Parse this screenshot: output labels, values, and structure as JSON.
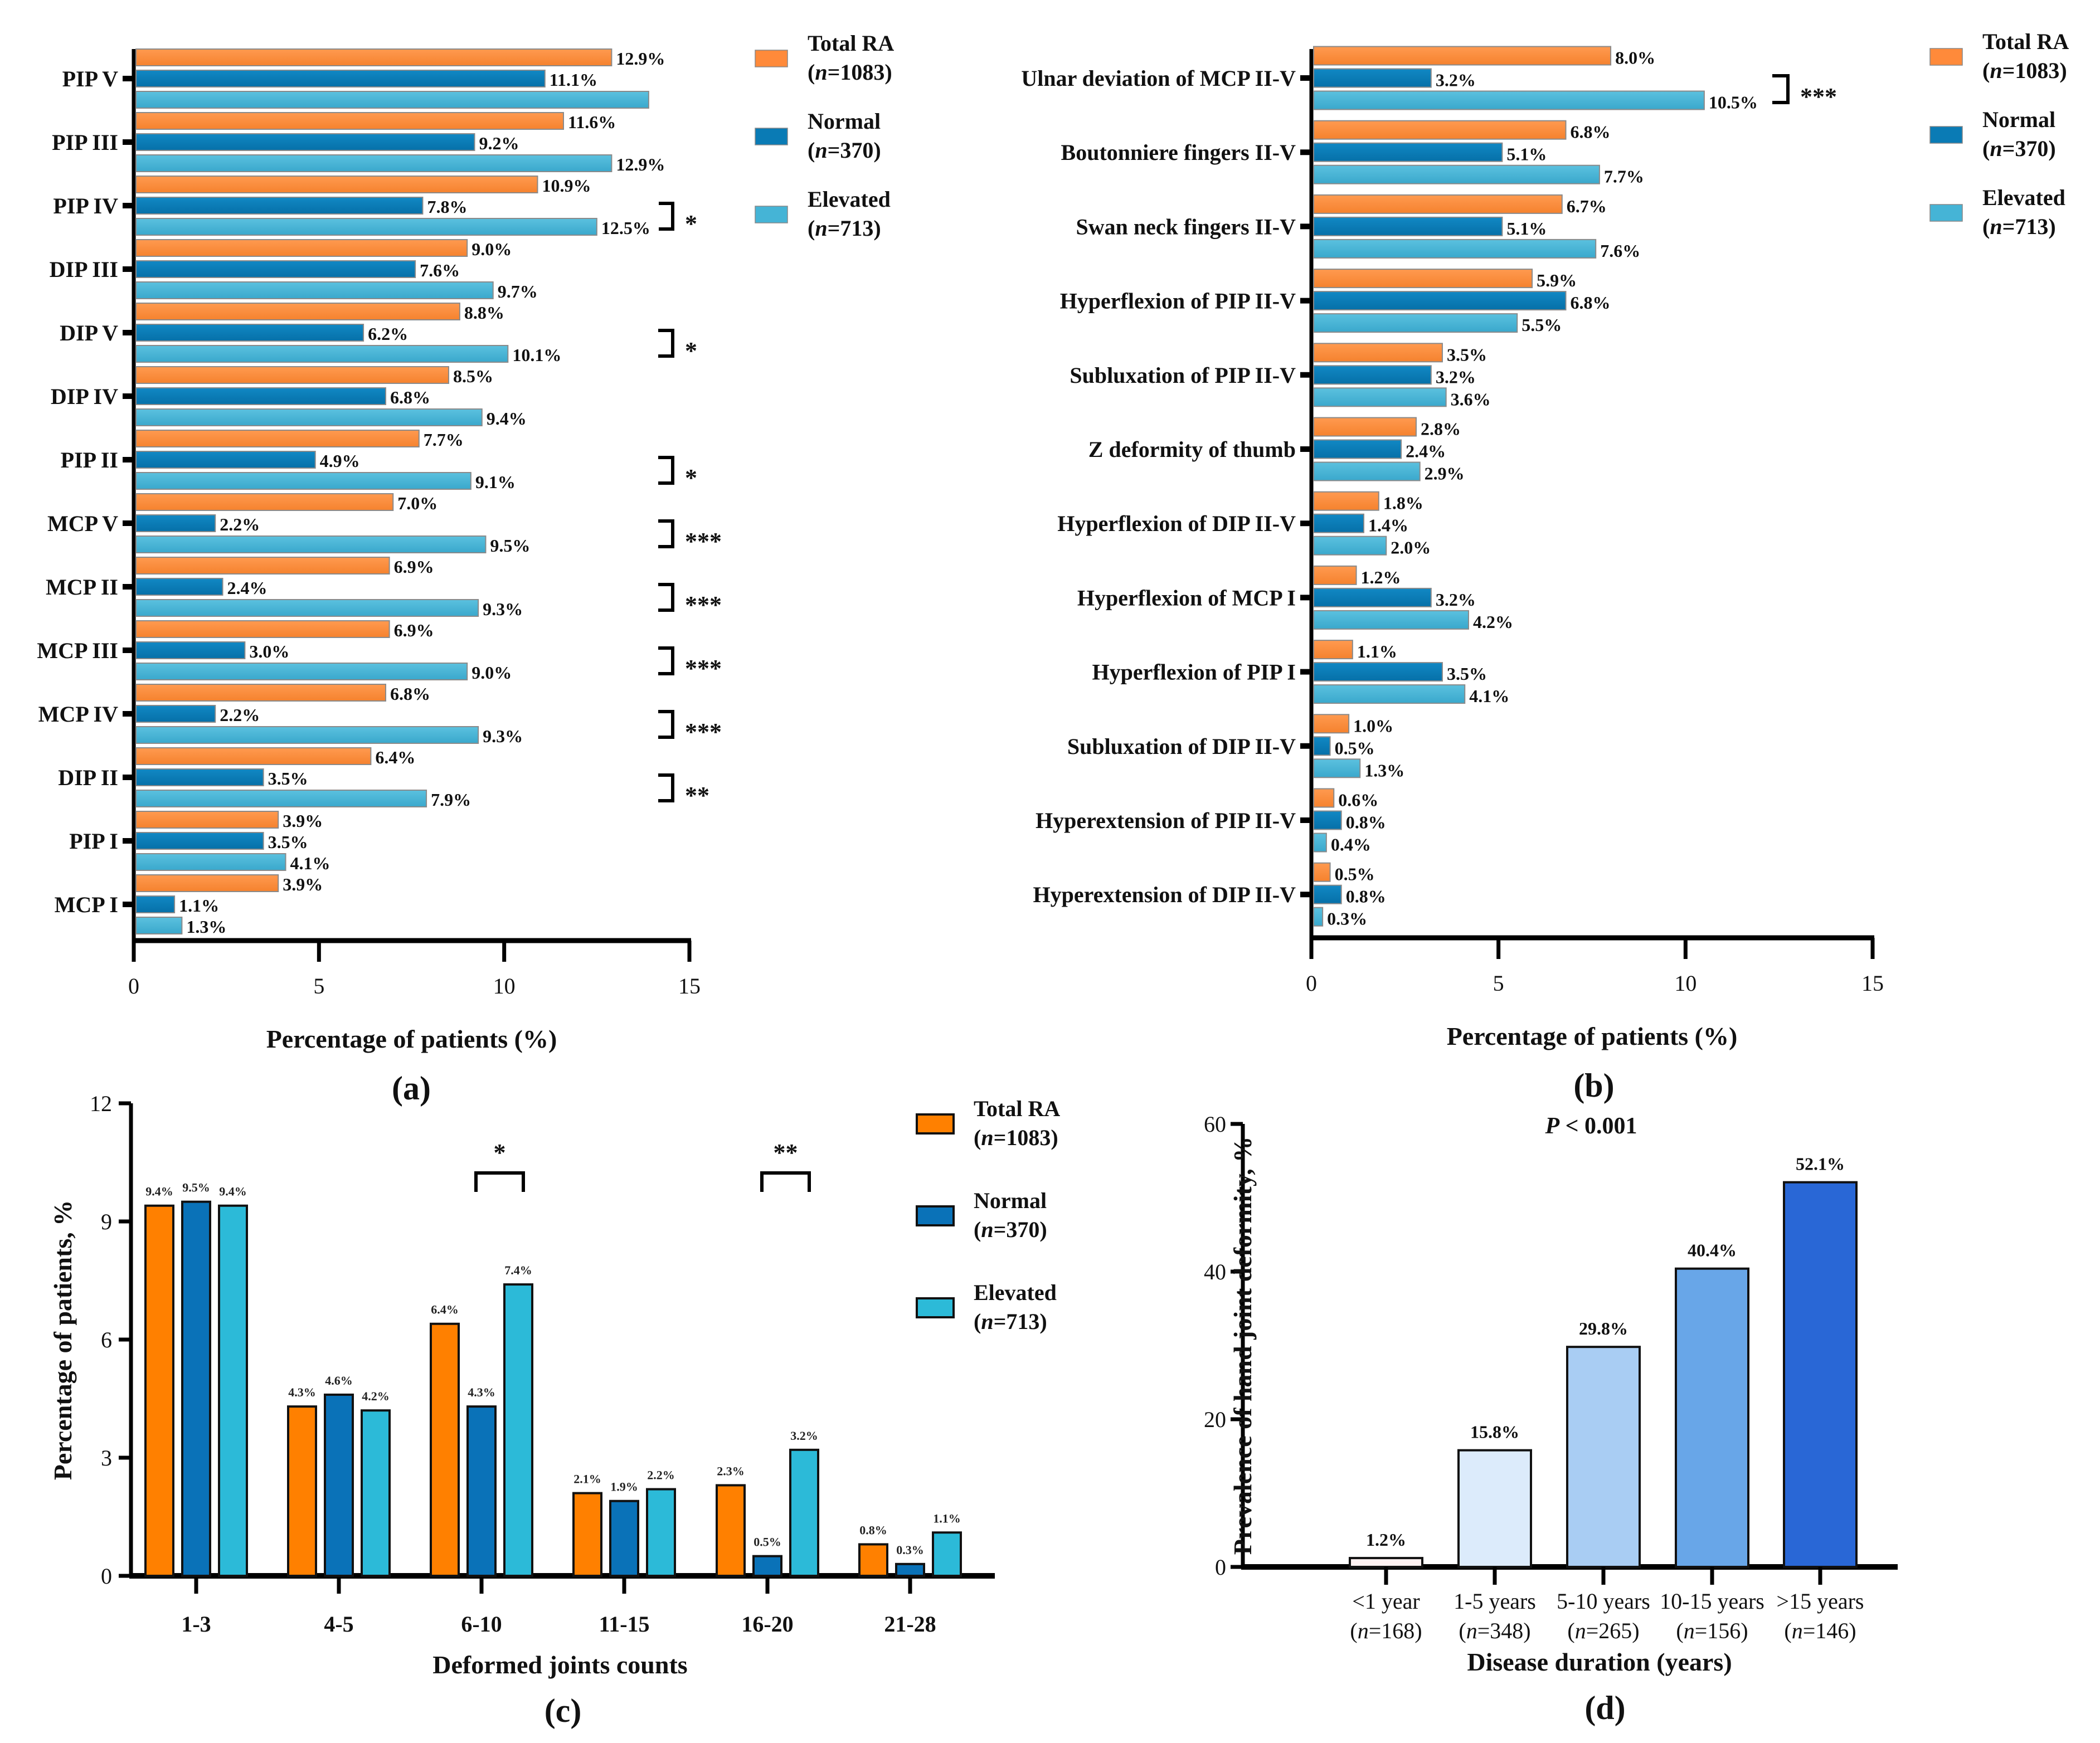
{
  "colors": {
    "total": "#FF8A3A",
    "normal": "#0A7BB5",
    "elevated": "#45B4D6",
    "total_c": "#FF8000",
    "normal_c": "#0A72B8",
    "elevated_c": "#2CBAD8",
    "d_bars": [
      "#FFF2F2",
      "#DCEBFB",
      "#A9CDF3",
      "#68A6E8",
      "#2967D6"
    ]
  },
  "legend": {
    "total": {
      "name": "Total RA",
      "n": "(n=1083)"
    },
    "normal": {
      "name": "Normal",
      "n": "(n=370)"
    },
    "elevated": {
      "name": "Elevated",
      "n": "(n=713)"
    }
  },
  "chart_data": [
    {
      "id": "a",
      "type": "bar",
      "orientation": "horizontal",
      "panel_label": "(a)",
      "xlabel": "Percentage of patients (%)",
      "ylabel": "",
      "xlim": [
        0,
        15
      ],
      "xticks": [
        "0",
        "5",
        "10",
        "15"
      ],
      "legend_position": "right",
      "categories": [
        "PIP V",
        "PIP III",
        "PIP IV",
        "DIP III",
        "DIP V",
        "DIP IV",
        "PIP II",
        "MCP V",
        "MCP II",
        "MCP III",
        "MCP IV",
        "DIP II",
        "PIP I",
        "MCP I"
      ],
      "series": [
        {
          "name": "Total RA (n=1083)",
          "key": "total",
          "values": [
            12.9,
            11.6,
            10.9,
            9.0,
            8.8,
            8.5,
            7.7,
            7.0,
            6.9,
            6.9,
            6.8,
            6.4,
            3.9,
            3.9
          ],
          "labels": [
            "12.9%",
            "11.6%",
            "10.9%",
            "9.0%",
            "8.8%",
            "8.5%",
            "7.7%",
            "7.0%",
            "6.9%",
            "6.9%",
            "6.8%",
            "6.4%",
            "3.9%",
            "3.9%"
          ]
        },
        {
          "name": "Normal (n=370)",
          "key": "normal",
          "values": [
            11.1,
            9.2,
            7.8,
            7.6,
            6.2,
            6.8,
            4.9,
            2.2,
            2.4,
            3.0,
            2.2,
            3.5,
            3.5,
            1.1
          ],
          "labels": [
            "11.1%",
            "9.2%",
            "7.8%",
            "7.6%",
            "6.2%",
            "6.8%",
            "4.9%",
            "2.2%",
            "2.4%",
            "3.0%",
            "2.2%",
            "3.5%",
            "3.5%",
            "1.1%"
          ]
        },
        {
          "name": "Elevated (n=713)",
          "key": "elevated",
          "values": [
            13.9,
            12.9,
            12.5,
            9.7,
            10.1,
            9.4,
            9.1,
            9.5,
            9.3,
            9.0,
            9.3,
            7.9,
            4.1,
            1.3
          ],
          "labels": [
            "",
            "12.9%",
            "12.5%",
            "9.7%",
            "10.1%",
            "9.4%",
            "9.1%",
            "9.5%",
            "9.3%",
            "9.0%",
            "9.3%",
            "7.9%",
            "4.1%",
            "1.3%"
          ]
        }
      ],
      "significance": [
        {
          "category": "PIP IV",
          "mark": "*"
        },
        {
          "category": "DIP V",
          "mark": "*"
        },
        {
          "category": "PIP II",
          "mark": "*"
        },
        {
          "category": "MCP V",
          "mark": "***"
        },
        {
          "category": "MCP II",
          "mark": "***"
        },
        {
          "category": "MCP III",
          "mark": "***"
        },
        {
          "category": "MCP IV",
          "mark": "***"
        },
        {
          "category": "DIP II",
          "mark": "**"
        }
      ]
    },
    {
      "id": "b",
      "type": "bar",
      "orientation": "horizontal",
      "panel_label": "(b)",
      "xlabel": "Percentage of patients (%)",
      "ylabel": "",
      "xlim": [
        0,
        15
      ],
      "xticks": [
        "0",
        "5",
        "10",
        "15"
      ],
      "legend_position": "right",
      "categories": [
        "Ulnar deviation of MCP II-V",
        "Boutonniere fingers II-V",
        "Swan neck fingers II-V",
        "Hyperflexion of PIP II-V",
        "Subluxation of PIP II-V",
        "Z deformity of thumb",
        "Hyperflexion of DIP II-V",
        "Hyperflexion of MCP I",
        "Hyperflexion of PIP I",
        "Subluxation of DIP II-V",
        "Hyperextension of PIP II-V",
        "Hyperextension of DIP II-V"
      ],
      "series": [
        {
          "name": "Total RA (n=1083)",
          "key": "total",
          "values": [
            8.0,
            6.8,
            6.7,
            5.9,
            3.5,
            2.8,
            1.8,
            1.2,
            1.1,
            1.0,
            0.6,
            0.5
          ],
          "labels": [
            "8.0%",
            "6.8%",
            "6.7%",
            "5.9%",
            "3.5%",
            "2.8%",
            "1.8%",
            "1.2%",
            "1.1%",
            "1.0%",
            "0.6%",
            "0.5%"
          ]
        },
        {
          "name": "Normal (n=370)",
          "key": "normal",
          "values": [
            3.2,
            5.1,
            5.1,
            6.8,
            3.2,
            2.4,
            1.4,
            3.2,
            3.5,
            0.5,
            0.8,
            0.8
          ],
          "labels": [
            "3.2%",
            "5.1%",
            "5.1%",
            "6.8%",
            "3.2%",
            "2.4%",
            "1.4%",
            "3.2%",
            "3.5%",
            "0.5%",
            "0.8%",
            "0.8%"
          ]
        },
        {
          "name": "Elevated (n=713)",
          "key": "elevated",
          "values": [
            10.5,
            7.7,
            7.6,
            5.5,
            3.6,
            2.9,
            2.0,
            4.2,
            4.1,
            1.3,
            0.4,
            0.3
          ],
          "labels": [
            "10.5%",
            "7.7%",
            "7.6%",
            "5.5%",
            "3.6%",
            "2.9%",
            "2.0%",
            "4.2%",
            "4.1%",
            "1.3%",
            "0.4%",
            "0.3%"
          ]
        }
      ],
      "significance": [
        {
          "category": "Ulnar deviation of MCP II-V",
          "mark": "***"
        }
      ]
    },
    {
      "id": "c",
      "type": "bar",
      "orientation": "vertical",
      "panel_label": "(c)",
      "xlabel": "Deformed joints counts",
      "ylabel": "Percentage of patients, %",
      "ylim": [
        0,
        12
      ],
      "yticks": [
        "0",
        "3",
        "6",
        "9",
        "12"
      ],
      "legend_position": "top-right",
      "categories": [
        "1-3",
        "4-5",
        "6-10",
        "11-15",
        "16-20",
        "21-28"
      ],
      "series": [
        {
          "name": "Total RA (n=1083)",
          "key": "total",
          "values": [
            9.4,
            4.3,
            6.4,
            2.1,
            2.3,
            0.8
          ],
          "labels": [
            "9.4%",
            "4.3%",
            "6.4%",
            "2.1%",
            "2.3%",
            "0.8%"
          ]
        },
        {
          "name": "Normal (n=370)",
          "key": "normal",
          "values": [
            9.5,
            4.6,
            4.3,
            1.9,
            0.5,
            0.3
          ],
          "labels": [
            "9.5%",
            "4.6%",
            "4.3%",
            "1.9%",
            "0.5%",
            "0.3%"
          ]
        },
        {
          "name": "Elevated (n=713)",
          "key": "elevated",
          "values": [
            9.4,
            4.2,
            7.4,
            2.2,
            3.2,
            1.1
          ],
          "labels": [
            "9.4%",
            "4.2%",
            "7.4%",
            "2.2%",
            "3.2%",
            "1.1%"
          ]
        }
      ],
      "significance": [
        {
          "category": "6-10",
          "mark": "*"
        },
        {
          "category": "16-20",
          "mark": "**"
        }
      ]
    },
    {
      "id": "d",
      "type": "bar",
      "orientation": "vertical",
      "panel_label": "(d)",
      "title": "P < 0.001",
      "xlabel": "Disease duration (years)",
      "ylabel": "Prevalence of hand joint deformity, %",
      "ylim": [
        0,
        60
      ],
      "yticks": [
        "0",
        "20",
        "40",
        "60"
      ],
      "categories": [
        "<1 year",
        "1-5 years",
        "5-10 years",
        "10-15 years",
        ">15 years"
      ],
      "category_n": [
        "(n=168)",
        "(n=348)",
        "(n=265)",
        "(n=156)",
        "(n=146)"
      ],
      "values": [
        1.2,
        15.8,
        29.8,
        40.4,
        52.1
      ],
      "labels": [
        "1.2%",
        "15.8%",
        "29.8%",
        "40.4%",
        "52.1%"
      ]
    }
  ]
}
